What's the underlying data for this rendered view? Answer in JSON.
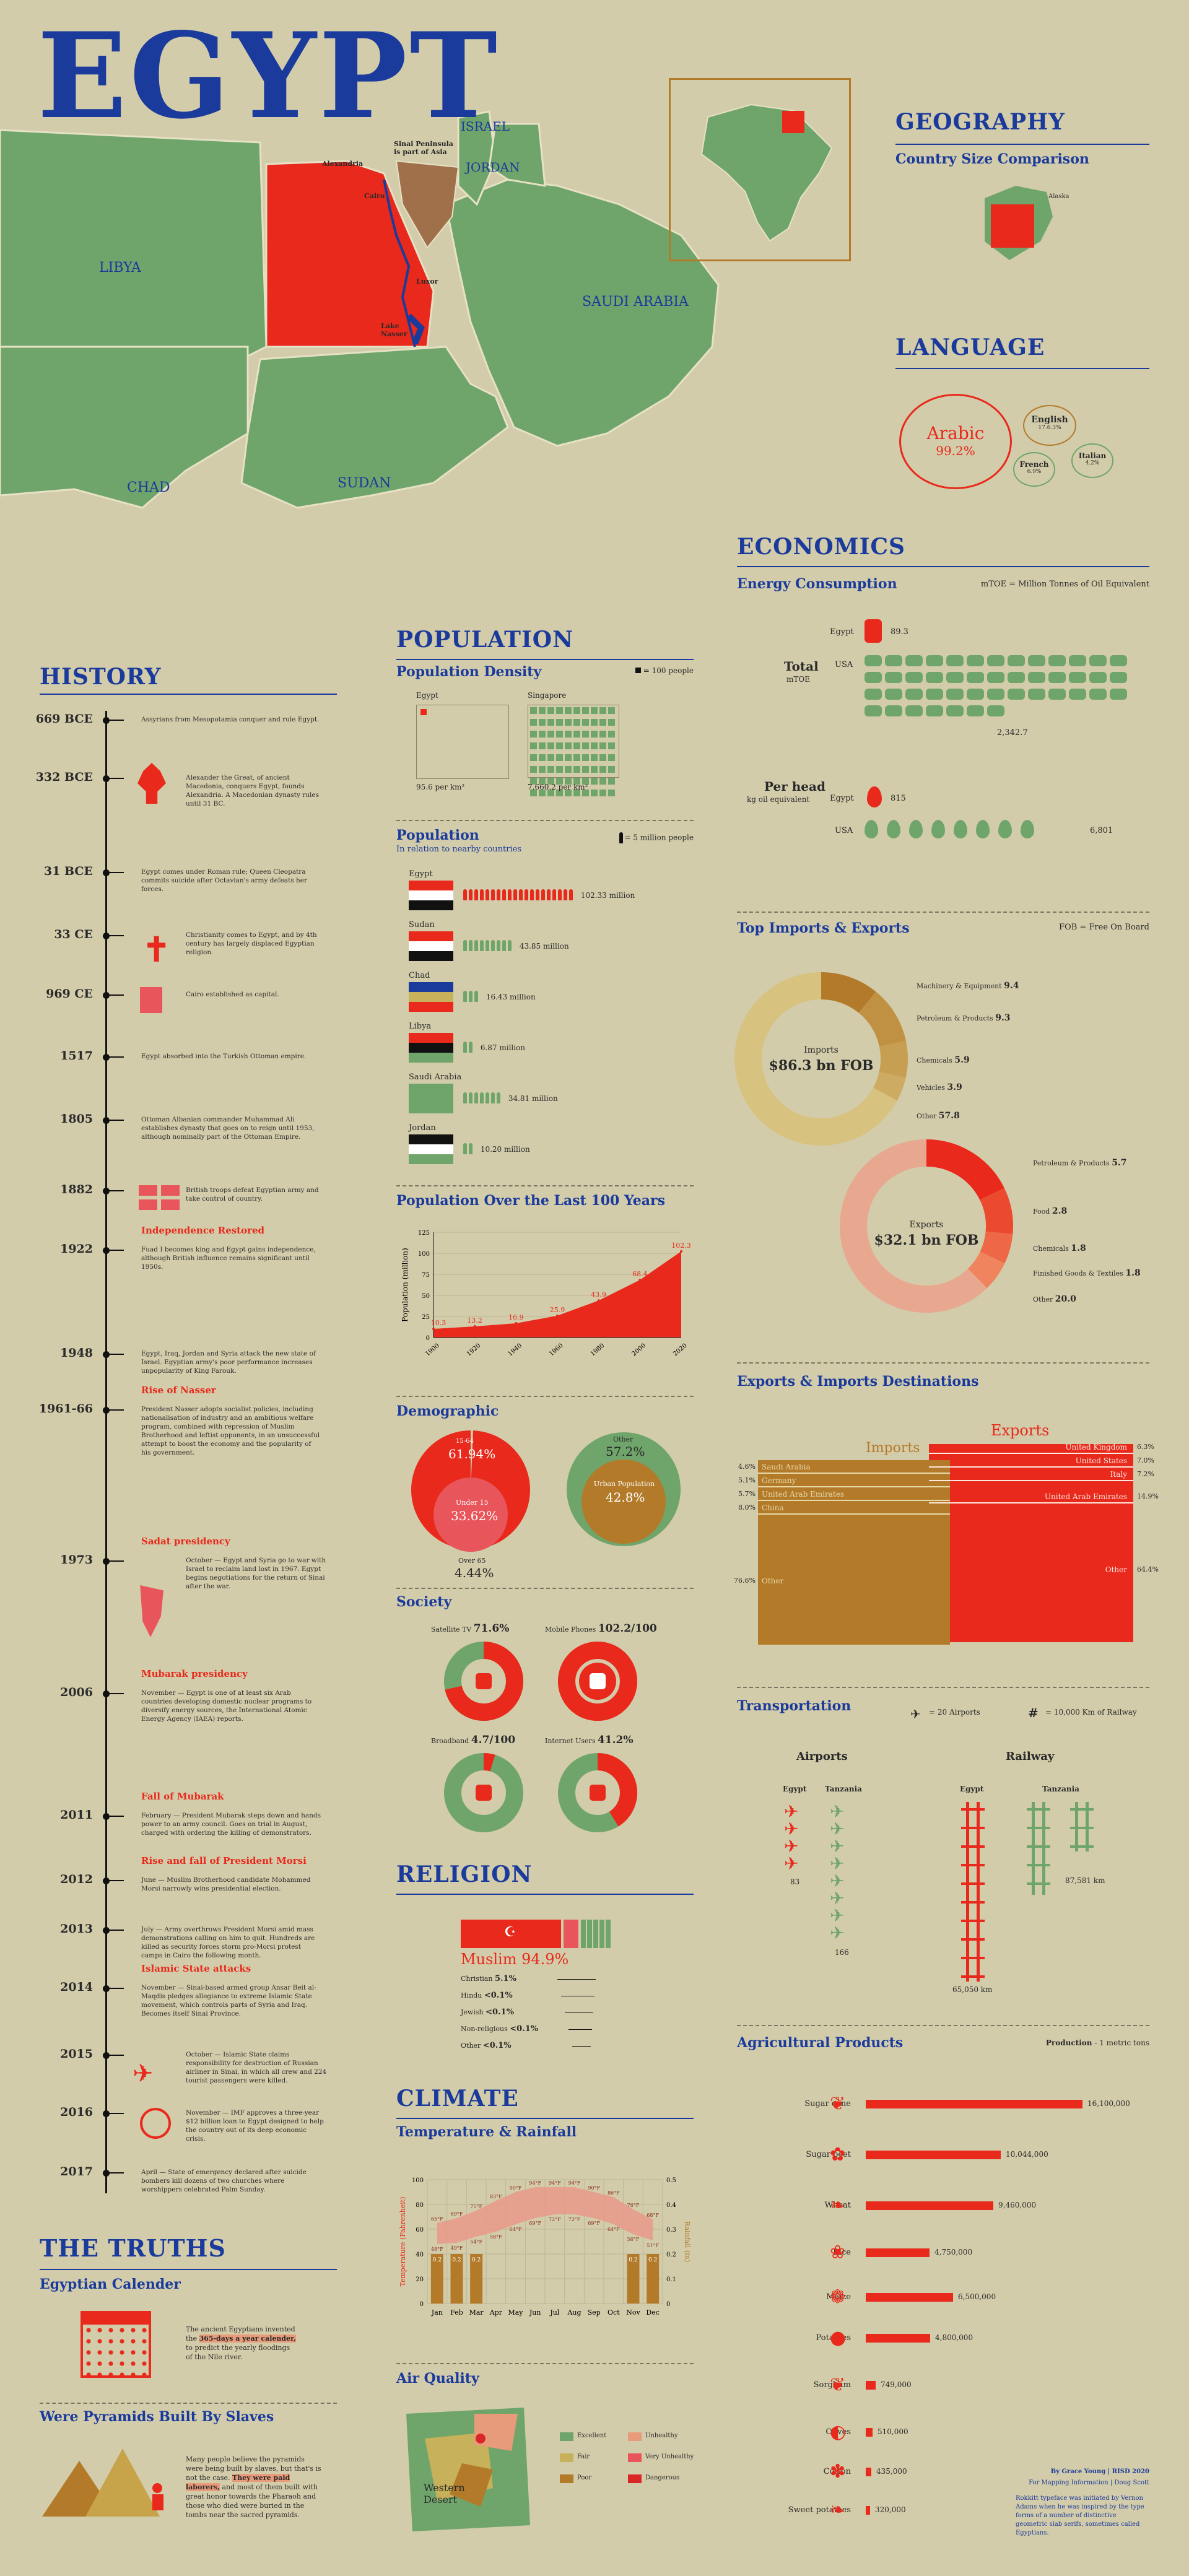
{
  "title": "EGYPT",
  "map": {
    "countries": [
      "LIBYA",
      "CHAD",
      "SUDAN",
      "SAUDI ARABIA",
      "ISRAEL",
      "JORDAN"
    ],
    "sinai_note": "Sinai Peninsula is part of Asia",
    "places": [
      "Alexandria",
      "Cairo",
      "Luxor",
      "Lake Nasser",
      "Aswan"
    ],
    "colors": {
      "egypt": "#e8291c",
      "neighbors": "#6fa56b",
      "sea": "#d3ccaa",
      "sinai": "#a0704a"
    }
  },
  "geography": {
    "heading": "GEOGRAPHY",
    "size_title": "Country Size Comparison",
    "compare_label": "Alaska"
  },
  "language": {
    "heading": "LANGUAGE",
    "main": "Arabic",
    "main_pct": "99.2%",
    "others": [
      {
        "name": "English",
        "pct": "17.6.3%"
      },
      {
        "name": "French",
        "pct": "6.9%"
      },
      {
        "name": "Italian",
        "pct": "4.2%"
      }
    ]
  },
  "economics": {
    "heading": "ECONOMICS",
    "energy_title": "Energy Consumption",
    "energy_key": "mTOE = Million Tonnes of Oil Equivalent",
    "total_label": "Total",
    "total_unit": "mTOE",
    "per_head_label": "Per head",
    "per_head_unit": "kg oil equivalent",
    "egypt_label": "Egypt",
    "usa_label": "USA",
    "total_egypt": "89.3",
    "total_usa": "2,342.7",
    "head_egypt": "815",
    "head_usa": "6,801",
    "trade_title": "Top Imports & Exports",
    "fob_key": "FOB = Free On Board",
    "imports_label": "Imports",
    "imports_value": "$86.3 bn FOB",
    "imports": [
      {
        "name": "Machinery & Equipment",
        "value": "9.4"
      },
      {
        "name": "Petroleum & Products",
        "value": "9.3"
      },
      {
        "name": "Chemicals",
        "value": "5.9"
      },
      {
        "name": "Vehicles",
        "value": "3.9"
      },
      {
        "name": "Other",
        "value": "57.8"
      }
    ],
    "exports_label": "Exports",
    "exports_value": "$32.1 bn FOB",
    "exports": [
      {
        "name": "Petroleum & Products",
        "value": "5.7"
      },
      {
        "name": "Food",
        "value": "2.8"
      },
      {
        "name": "Chemicals",
        "value": "1.8"
      },
      {
        "name": "Finished Goods & Textiles",
        "value": "1.8"
      },
      {
        "name": "Other",
        "value": "20.0"
      }
    ],
    "dest_title": "Exports & Imports Destinations",
    "dest_imports_label": "Imports",
    "dest_exports_label": "Exports",
    "dest_imports": [
      {
        "name": "Saudi Arabia",
        "pct": "4.6%"
      },
      {
        "name": "Germany",
        "pct": "5.1%"
      },
      {
        "name": "United Arab Emirates",
        "pct": "5.7%"
      },
      {
        "name": "China",
        "pct": "8.0%"
      },
      {
        "name": "Other",
        "pct": "76.6%"
      }
    ],
    "dest_exports": [
      {
        "name": "United Kingdom",
        "pct": "6.3%"
      },
      {
        "name": "United States",
        "pct": "7.0%"
      },
      {
        "name": "Italy",
        "pct": "7.2%"
      },
      {
        "name": "United Arab Emirates",
        "pct": "14.9%"
      },
      {
        "name": "Other",
        "pct": "64.4%"
      }
    ]
  },
  "transport": {
    "title": "Transportation",
    "airport_key": "= 20 Airports",
    "rail_key": "= 10,000 Km of Railway",
    "airports_label": "Airports",
    "railway_label": "Railway",
    "egypt_label": "Egypt",
    "tanzania_label": "Tanzania",
    "egypt_airports": "83",
    "tanzania_airports": "166",
    "egypt_rail": "65,050 km",
    "tanzania_rail": "87,581 km"
  },
  "agri": {
    "title": "Agricultural Products",
    "key_label": "Production",
    "key_unit": "- 1 metric tons",
    "items": [
      {
        "name": "Sugar cane",
        "value": "16,100,000",
        "v": 16100000
      },
      {
        "name": "Sugar beet",
        "value": "10,044,000",
        "v": 10044000
      },
      {
        "name": "Wheat",
        "value": "9,460,000",
        "v": 9460000
      },
      {
        "name": "Rice",
        "value": "4,750,000",
        "v": 4750000
      },
      {
        "name": "Maize",
        "value": "6,500,000",
        "v": 6500000
      },
      {
        "name": "Potatoes",
        "value": "4,800,000",
        "v": 4800000
      },
      {
        "name": "Sorghum",
        "value": "749,000",
        "v": 749000
      },
      {
        "name": "Olives",
        "value": "510,000",
        "v": 510000
      },
      {
        "name": "Cotton",
        "value": "435,000",
        "v": 435000
      },
      {
        "name": "Sweet potatoes",
        "value": "320,000",
        "v": 320000
      }
    ]
  },
  "credits": {
    "line1": "By Grace Young | RISD 2020",
    "line2": "For Mapping Information | Doug Scott",
    "line3": "Rokkitt typeface was initiated by Vernon Adams when he was inspired by the type forms of a number of distinctive geometric slab serifs, sometimes called Egyptians."
  },
  "population": {
    "heading": "POPULATION",
    "density_title": "Population Density",
    "density_key": "= 100 people",
    "egypt_label": "Egypt",
    "singapore_label": "Singapore",
    "egypt_density": "95.6 per km²",
    "singapore_density": "7,660.2 per km²",
    "pop_title": "Population",
    "pop_sub": "In relation to nearby countries",
    "pop_key": "= 5 million people",
    "countries": [
      {
        "name": "Egypt",
        "value": "102.33 million",
        "icons": 20
      },
      {
        "name": "Sudan",
        "value": "43.85 million",
        "icons": 9
      },
      {
        "name": "Chad",
        "value": "16.43 million",
        "icons": 3
      },
      {
        "name": "Libya",
        "value": "6.87 million",
        "icons": 2
      },
      {
        "name": "Saudi Arabia",
        "value": "34.81 million",
        "icons": 7
      },
      {
        "name": "Jordan",
        "value": "10.20 million",
        "icons": 2
      }
    ],
    "trend_title": "Population Over the Last 100 Years"
  },
  "chart_data": {
    "type": "area",
    "x": [
      1900,
      1920,
      1940,
      1960,
      1980,
      2000,
      2020
    ],
    "values": [
      10.3,
      13.2,
      16.9,
      25.9,
      43.9,
      68.4,
      102.3
    ],
    "labels": [
      "10.3",
      "13.2",
      "16.9",
      "25.9",
      "43.9",
      "68.4",
      "102.3"
    ],
    "ylabel": "Population (million)",
    "ylim": [
      0,
      125
    ],
    "yticks": [
      0,
      25,
      50,
      75,
      100,
      125
    ],
    "xticks": [
      "1900",
      "1920",
      "1940",
      "1960",
      "1980",
      "2000",
      "2020"
    ]
  },
  "demographic": {
    "title": "Demographic",
    "age_labels": [
      {
        "name": "15-64",
        "pct": "61.94%"
      },
      {
        "name": "Under 15",
        "pct": "33.62%"
      },
      {
        "name": "Over 65",
        "pct": "4.44%"
      }
    ],
    "urban_labels": [
      {
        "name": "Other",
        "pct": "57.2%"
      },
      {
        "name": "Urban Population",
        "pct": "42.8%"
      }
    ]
  },
  "society": {
    "title": "Society",
    "items": [
      {
        "name": "Satellite TV",
        "value": "71.6%"
      },
      {
        "name": "Mobile Phones",
        "value": "102.2/100"
      },
      {
        "name": "Broadband",
        "value": "4.7/100"
      },
      {
        "name": "Internet Users",
        "value": "41.2%"
      }
    ]
  },
  "religion": {
    "heading": "RELIGION",
    "main": "Muslim",
    "main_pct": "94.9%",
    "others": [
      {
        "name": "Christian",
        "pct": "5.1%"
      },
      {
        "name": "Hindu",
        "pct": "<0.1%"
      },
      {
        "name": "Jewish",
        "pct": "<0.1%"
      },
      {
        "name": "Non-religious",
        "pct": "<0.1%"
      },
      {
        "name": "Other",
        "pct": "<0.1%"
      }
    ]
  },
  "climate": {
    "heading": "CLIMATE",
    "temp_title": "Temperature & Rainfall",
    "y_left_label": "Temperature (Fahrenheit)",
    "y_right_label": "Rainfall (in)",
    "months": [
      "Jan",
      "Feb",
      "Mar",
      "Apr",
      "May",
      "Jun",
      "Jul",
      "Aug",
      "Sep",
      "Oct",
      "Nov",
      "Dec"
    ],
    "high": [
      65,
      69,
      75,
      83,
      90,
      94,
      94,
      94,
      90,
      86,
      76,
      68
    ],
    "low": [
      48,
      49,
      54,
      58,
      64,
      69,
      72,
      72,
      69,
      64,
      56,
      51
    ],
    "rain_labels": [
      "0.2",
      "0.2",
      "0.2",
      "",
      "",
      "",
      "",
      "",
      "",
      "",
      "0.2",
      "0.2"
    ],
    "left_ticks": [
      "0",
      "20",
      "40",
      "60",
      "80",
      "100"
    ],
    "right_ticks": [
      "0",
      "0.1",
      "0.2",
      "0.3",
      "0.4",
      "0.5"
    ],
    "air_title": "Air Quality",
    "air_legend": [
      {
        "name": "Excellent",
        "color": "#6fa56b"
      },
      {
        "name": "Fair",
        "color": "#c7b15a"
      },
      {
        "name": "Poor",
        "color": "#b37a2a"
      },
      {
        "name": "Unhealthy",
        "color": "#e89b7a"
      },
      {
        "name": "Very Unhealthy",
        "color": "#e8555a"
      },
      {
        "name": "Dangerous",
        "color": "#d92626"
      }
    ],
    "air_place": "Western Desert"
  },
  "history": {
    "heading": "HISTORY",
    "events": [
      {
        "year": "669 BCE",
        "title": "",
        "text": "Assyrians from Mesopotamia conquer and rule Egypt."
      },
      {
        "year": "332 BCE",
        "title": "",
        "text": "Alexander the Great, of ancient Macedonia, conquers Egypt, founds Alexandria. A Macedonian dynasty rules until 31 BC."
      },
      {
        "year": "31 BCE",
        "title": "",
        "text": "Egypt comes under Roman rule; Queen Cleopatra commits suicide after Octavian's army defeats her forces."
      },
      {
        "year": "33 CE",
        "title": "",
        "text": "Christianity comes to Egypt, and by 4th century has largely displaced Egyptian religion."
      },
      {
        "year": "969 CE",
        "title": "",
        "text": "Cairo established as capital."
      },
      {
        "year": "1517",
        "title": "",
        "text": "Egypt absorbed into the Turkish Ottoman empire."
      },
      {
        "year": "1805",
        "title": "",
        "text": "Ottoman Albanian commander Muhammad Ali establishes dynasty that goes on to reign until 1953, although nominally part of the Ottoman Empire."
      },
      {
        "year": "1882",
        "title": "",
        "text": "British troops defeat Egyptian army and take control of country."
      },
      {
        "year": "1922",
        "title": "Independence Restored",
        "text": "Fuad I becomes king and Egypt gains independence, although British influence remains significant until 1950s."
      },
      {
        "year": "1948",
        "title": "",
        "text": "Egypt, Iraq, Jordan and Syria attack the new state of Israel. Egyptian army's poor performance increases unpopularity of King Farouk."
      },
      {
        "year": "1961-66",
        "title": "Rise of Nasser",
        "text": "President Nasser adopts socialist policies, including nationalisation of industry and an ambitious welfare program, combined with repression of Muslim Brotherhood and leftist opponents, in an unsuccessful attempt to boost the economy and the popularity of his government."
      },
      {
        "year": "1973",
        "title": "Sadat presidency",
        "text": "October — Egypt and Syria go to war with Israel to reclaim land lost in 1967. Egypt begins negotiations for the return of Sinai after the war."
      },
      {
        "year": "2006",
        "title": "Mubarak presidency",
        "text": "November — Egypt is one of at least six Arab countries developing domestic nuclear programs to diversify energy sources, the International Atomic Energy Agency (IAEA) reports."
      },
      {
        "year": "2011",
        "title": "Fall of Mubarak",
        "text": "February — President Mubarak steps down and hands power to an army council. Goes on trial in August, charged with ordering the killing of demonstrators."
      },
      {
        "year": "2012",
        "title": "Rise and fall of President Morsi",
        "text": "June — Muslim Brotherhood candidate Mohammed Morsi narrowly wins presidential election."
      },
      {
        "year": "2013",
        "title": "",
        "text": "July — Army overthrows President Morsi amid mass demonstrations calling on him to quit. Hundreds are killed as security forces storm pro-Morsi protest camps in Cairo the following month."
      },
      {
        "year": "2014",
        "title": "Islamic State attacks",
        "text": "November — Sinai-based armed group Ansar Beit al-Maqdis pledges allegiance to extreme Islamic State movement, which controls parts of Syria and Iraq. Becomes itself Sinai Province."
      },
      {
        "year": "2015",
        "title": "",
        "text": "October — Islamic State claims responsibility for destruction of Russian airliner in Sinai, in which all crew and 224 tourist passengers were killed."
      },
      {
        "year": "2016",
        "title": "",
        "text": "November — IMF approves a three-year $12 billion loan to Egypt designed to help the country out of its deep economic crisis."
      },
      {
        "year": "2017",
        "title": "",
        "text": "April — State of emergency declared after suicide bombers kill dozens of two churches where worshippers celebrated Palm Sunday."
      }
    ]
  },
  "truths": {
    "heading": "THE TRUTHS",
    "cal_title": "Egyptian Calender",
    "cal_text_a": "The ancient Egyptians invented the",
    "cal_highlight": "365-days a year calender,",
    "cal_text_b": "to predict the yearly floodings of the Nile river.",
    "pyr_title": "Were Pyramids Built By Slaves",
    "pyr_text_a": "Many people believe the pyramids were being built by slaves, but that's is not the case.",
    "pyr_highlight": "They were paid laborers,",
    "pyr_text_b": "and most of them built with great honor towards the Pharaoh and those who died were buried in the tombs near the sacred pyramids."
  }
}
